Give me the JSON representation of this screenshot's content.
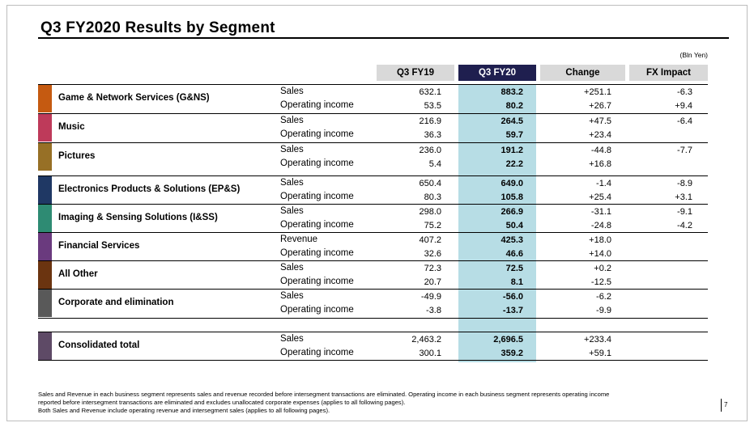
{
  "title": "Q3 FY2020  Results by Segment",
  "unit": "(Bln Yen)",
  "headers": [
    "Q3 FY19",
    "Q3 FY20",
    "Change",
    "FX Impact"
  ],
  "segments": [
    {
      "name": "Game & Network Services (G&NS)",
      "color": "#c55a11",
      "rows": [
        {
          "label": "Sales",
          "fy19": "632.1",
          "fy20": "883.2",
          "change": "+251.1",
          "fx": "-6.3"
        },
        {
          "label": "Operating income",
          "fy19": "53.5",
          "fy20": "80.2",
          "change": "+26.7",
          "fx": "+9.4"
        }
      ]
    },
    {
      "name": "Music",
      "color": "#be3a5a",
      "rows": [
        {
          "label": "Sales",
          "fy19": "216.9",
          "fy20": "264.5",
          "change": "+47.5",
          "fx": "-6.4"
        },
        {
          "label": "Operating income",
          "fy19": "36.3",
          "fy20": "59.7",
          "change": "+23.4",
          "fx": ""
        }
      ]
    },
    {
      "name": "Pictures",
      "color": "#977026",
      "rows": [
        {
          "label": "Sales",
          "fy19": "236.0",
          "fy20": "191.2",
          "change": "-44.8",
          "fx": "-7.7"
        },
        {
          "label": "Operating income",
          "fy19": "5.4",
          "fy20": "22.2",
          "change": "+16.8",
          "fx": ""
        }
      ]
    },
    {
      "name": "Electronics Products & Solutions (EP&S)",
      "color": "#1f3864",
      "rows": [
        {
          "label": "Sales",
          "fy19": "650.4",
          "fy20": "649.0",
          "change": "-1.4",
          "fx": "-8.9"
        },
        {
          "label": "Operating income",
          "fy19": "80.3",
          "fy20": "105.8",
          "change": "+25.4",
          "fx": "+3.1"
        }
      ]
    },
    {
      "name": "Imaging & Sensing Solutions (I&SS)",
      "color": "#2e8b73",
      "rows": [
        {
          "label": "Sales",
          "fy19": "298.0",
          "fy20": "266.9",
          "change": "-31.1",
          "fx": "-9.1"
        },
        {
          "label": "Operating income",
          "fy19": "75.2",
          "fy20": "50.4",
          "change": "-24.8",
          "fx": "-4.2"
        }
      ]
    },
    {
      "name": "Financial Services",
      "color": "#6a3a7e",
      "rows": [
        {
          "label": "Revenue",
          "fy19": "407.2",
          "fy20": "425.3",
          "change": "+18.0",
          "fx": ""
        },
        {
          "label": "Operating income",
          "fy19": "32.6",
          "fy20": "46.6",
          "change": "+14.0",
          "fx": ""
        }
      ]
    },
    {
      "name": "All Other",
      "color": "#6b3410",
      "rows": [
        {
          "label": "Sales",
          "fy19": "72.3",
          "fy20": "72.5",
          "change": "+0.2",
          "fx": ""
        },
        {
          "label": "Operating income",
          "fy19": "20.7",
          "fy20": "8.1",
          "change": "-12.5",
          "fx": ""
        }
      ]
    },
    {
      "name": "Corporate and elimination",
      "color": "#595959",
      "rows": [
        {
          "label": "Sales",
          "fy19": "-49.9",
          "fy20": "-56.0",
          "change": "-6.2",
          "fx": ""
        },
        {
          "label": "Operating income",
          "fy19": "-3.8",
          "fy20": "-13.7",
          "change": "-9.9",
          "fx": ""
        }
      ]
    }
  ],
  "total": {
    "name": "Consolidated total",
    "color": "#5e4a66",
    "rows": [
      {
        "label": "Sales",
        "fy19": "2,463.2",
        "fy20": "2,696.5",
        "change": "+233.4",
        "fx": ""
      },
      {
        "label": "Operating income",
        "fy19": "300.1",
        "fy20": "359.2",
        "change": "+59.1",
        "fx": ""
      }
    ]
  },
  "footnotes": [
    "Sales and Revenue in each business segment represents sales and revenue recorded before intersegment transactions are eliminated. Operating income in each business segment represents operating income",
    "reported before intersegment transactions are eliminated and excludes unallocated corporate expenses (applies to all following pages).",
    "Both Sales and Revenue include operating revenue and intersegment sales (applies to all following pages)."
  ],
  "page_number": "7"
}
